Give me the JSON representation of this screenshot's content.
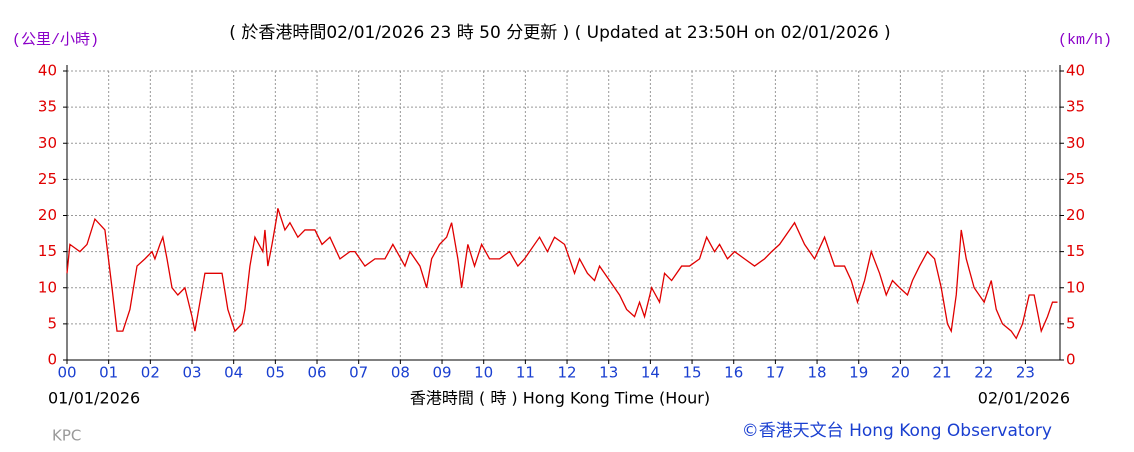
{
  "chart_data": {
    "type": "line",
    "title": "( 於香港時間02/01/2026 23 時 50 分更新 ) ( Updated at 23:50H on 02/01/2026 )",
    "y_label": "(公里/小時)",
    "y2_label": "(km/h)",
    "x_label": "香港時間 ( 時 )  Hong Kong Time (Hour)",
    "start_date": "01/01/2026",
    "end_date": "02/01/2026",
    "station": "KPC",
    "credit": "©香港天文台 Hong Kong Observatory",
    "grid": true,
    "xlim": [
      0,
      23.83
    ],
    "ylim": [
      0,
      40
    ],
    "yticks": [
      0,
      5,
      10,
      15,
      20,
      25,
      30,
      35,
      40
    ],
    "xticks": [
      {
        "value": 0,
        "label": "00"
      },
      {
        "value": 1,
        "label": "01"
      },
      {
        "value": 2,
        "label": "02"
      },
      {
        "value": 3,
        "label": "03"
      },
      {
        "value": 4,
        "label": "04"
      },
      {
        "value": 5,
        "label": "05"
      },
      {
        "value": 6,
        "label": "06"
      },
      {
        "value": 7,
        "label": "07"
      },
      {
        "value": 8,
        "label": "08"
      },
      {
        "value": 9,
        "label": "09"
      },
      {
        "value": 10,
        "label": "10"
      },
      {
        "value": 11,
        "label": "11"
      },
      {
        "value": 12,
        "label": "12"
      },
      {
        "value": 13,
        "label": "13"
      },
      {
        "value": 14,
        "label": "14"
      },
      {
        "value": 15,
        "label": "15"
      },
      {
        "value": 16,
        "label": "16"
      },
      {
        "value": 17,
        "label": "17"
      },
      {
        "value": 18,
        "label": "18"
      },
      {
        "value": 19,
        "label": "19"
      },
      {
        "value": 20,
        "label": "20"
      },
      {
        "value": 21,
        "label": "21"
      },
      {
        "value": 22,
        "label": "22"
      },
      {
        "value": 23,
        "label": "23"
      }
    ],
    "series": [
      {
        "color": "#e00000",
        "x": [
          0,
          0.07,
          0.31,
          0.48,
          0.67,
          0.91,
          1.08,
          1.2,
          1.34,
          1.51,
          1.68,
          1.87,
          2.04,
          2.11,
          2.23,
          2.3,
          2.4,
          2.52,
          2.66,
          2.83,
          3.0,
          3.07,
          3.19,
          3.31,
          3.55,
          3.72,
          3.86,
          4.03,
          4.2,
          4.27,
          4.39,
          4.51,
          4.7,
          4.75,
          4.82,
          4.92,
          5.04,
          5.06,
          5.23,
          5.35,
          5.54,
          5.71,
          5.95,
          6.12,
          6.31,
          6.55,
          6.79,
          6.91,
          7.15,
          7.39,
          7.63,
          7.82,
          8.11,
          8.23,
          8.47,
          8.63,
          8.75,
          8.94,
          9.11,
          9.23,
          9.38,
          9.47,
          9.62,
          9.78,
          9.95,
          10.14,
          10.38,
          10.62,
          10.82,
          10.98,
          11.34,
          11.53,
          11.7,
          11.94,
          12.18,
          12.3,
          12.49,
          12.66,
          12.78,
          13.02,
          13.26,
          13.43,
          13.62,
          13.74,
          13.86,
          14.03,
          14.22,
          14.34,
          14.51,
          14.75,
          14.94,
          15.18,
          15.35,
          15.54,
          15.66,
          15.85,
          16.02,
          16.26,
          16.5,
          16.74,
          16.91,
          17.1,
          17.34,
          17.46,
          17.7,
          17.94,
          18.18,
          18.42,
          18.66,
          18.82,
          18.97,
          19.14,
          19.3,
          19.5,
          19.66,
          19.81,
          19.98,
          20.17,
          20.29,
          20.46,
          20.65,
          20.82,
          20.98,
          21.13,
          21.22,
          21.34,
          21.46,
          21.58,
          21.77,
          22.01,
          22.18,
          22.3,
          22.45,
          22.66,
          22.78,
          22.93,
          23.09,
          23.21,
          23.38,
          23.53,
          23.65,
          23.77
        ],
        "values": [
          12,
          16,
          15,
          16,
          19.5,
          18,
          10,
          4,
          4,
          7,
          13,
          14,
          15,
          14,
          16,
          17,
          14,
          10,
          9,
          10,
          6,
          4,
          8,
          12,
          12,
          12,
          7,
          4,
          5,
          7,
          13,
          17,
          15,
          18,
          13,
          16,
          20,
          21,
          18,
          19,
          17,
          18,
          18,
          16,
          17,
          14,
          15,
          15,
          13,
          14,
          14,
          16,
          13,
          15,
          13,
          10,
          14,
          16,
          17,
          19,
          14,
          10,
          16,
          13,
          16,
          14,
          14,
          15,
          13,
          14,
          17,
          15,
          17,
          16,
          12,
          14,
          12,
          11,
          13,
          11,
          9,
          7,
          6,
          8,
          6,
          10,
          8,
          12,
          11,
          13,
          13,
          14,
          17,
          15,
          16,
          14,
          15,
          14,
          13,
          14,
          15,
          16,
          18,
          19,
          16,
          14,
          17,
          13,
          13,
          11,
          8,
          11,
          15,
          12,
          9,
          11,
          10,
          9,
          11,
          13,
          15,
          14,
          10,
          5,
          4,
          9,
          18,
          14,
          10,
          8,
          11,
          7,
          5,
          4,
          3,
          5,
          9,
          9,
          4,
          6,
          8,
          8
        ]
      }
    ]
  }
}
